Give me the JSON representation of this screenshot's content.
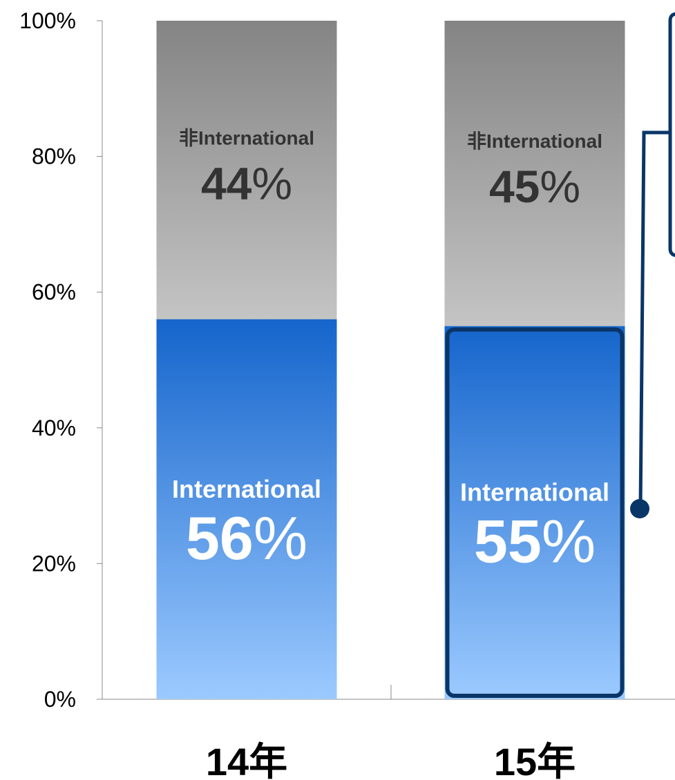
{
  "chart_data": {
    "type": "bar",
    "stacked": true,
    "percent": true,
    "categories": [
      "14年",
      "15年"
    ],
    "series": [
      {
        "name": "International",
        "values": [
          56,
          55
        ],
        "labels": [
          "56",
          "55"
        ],
        "color_top": "#1565cc",
        "color_bottom": "#9ccaff",
        "text_color": "#ffffff"
      },
      {
        "name": "非International",
        "values": [
          44,
          45
        ],
        "labels": [
          "44",
          "45"
        ],
        "color_top": "#848484",
        "color_bottom": "#c4c4c4",
        "text_color": "#333333"
      }
    ],
    "percent_sign": "%",
    "ylim": [
      0,
      100
    ],
    "yticks": [
      "0%",
      "20%",
      "40%",
      "60%",
      "80%",
      "100%"
    ],
    "highlight": {
      "category_index": 1,
      "series_index": 0,
      "color": "#0a3567"
    },
    "title": "",
    "xlabel": "",
    "ylabel": ""
  }
}
